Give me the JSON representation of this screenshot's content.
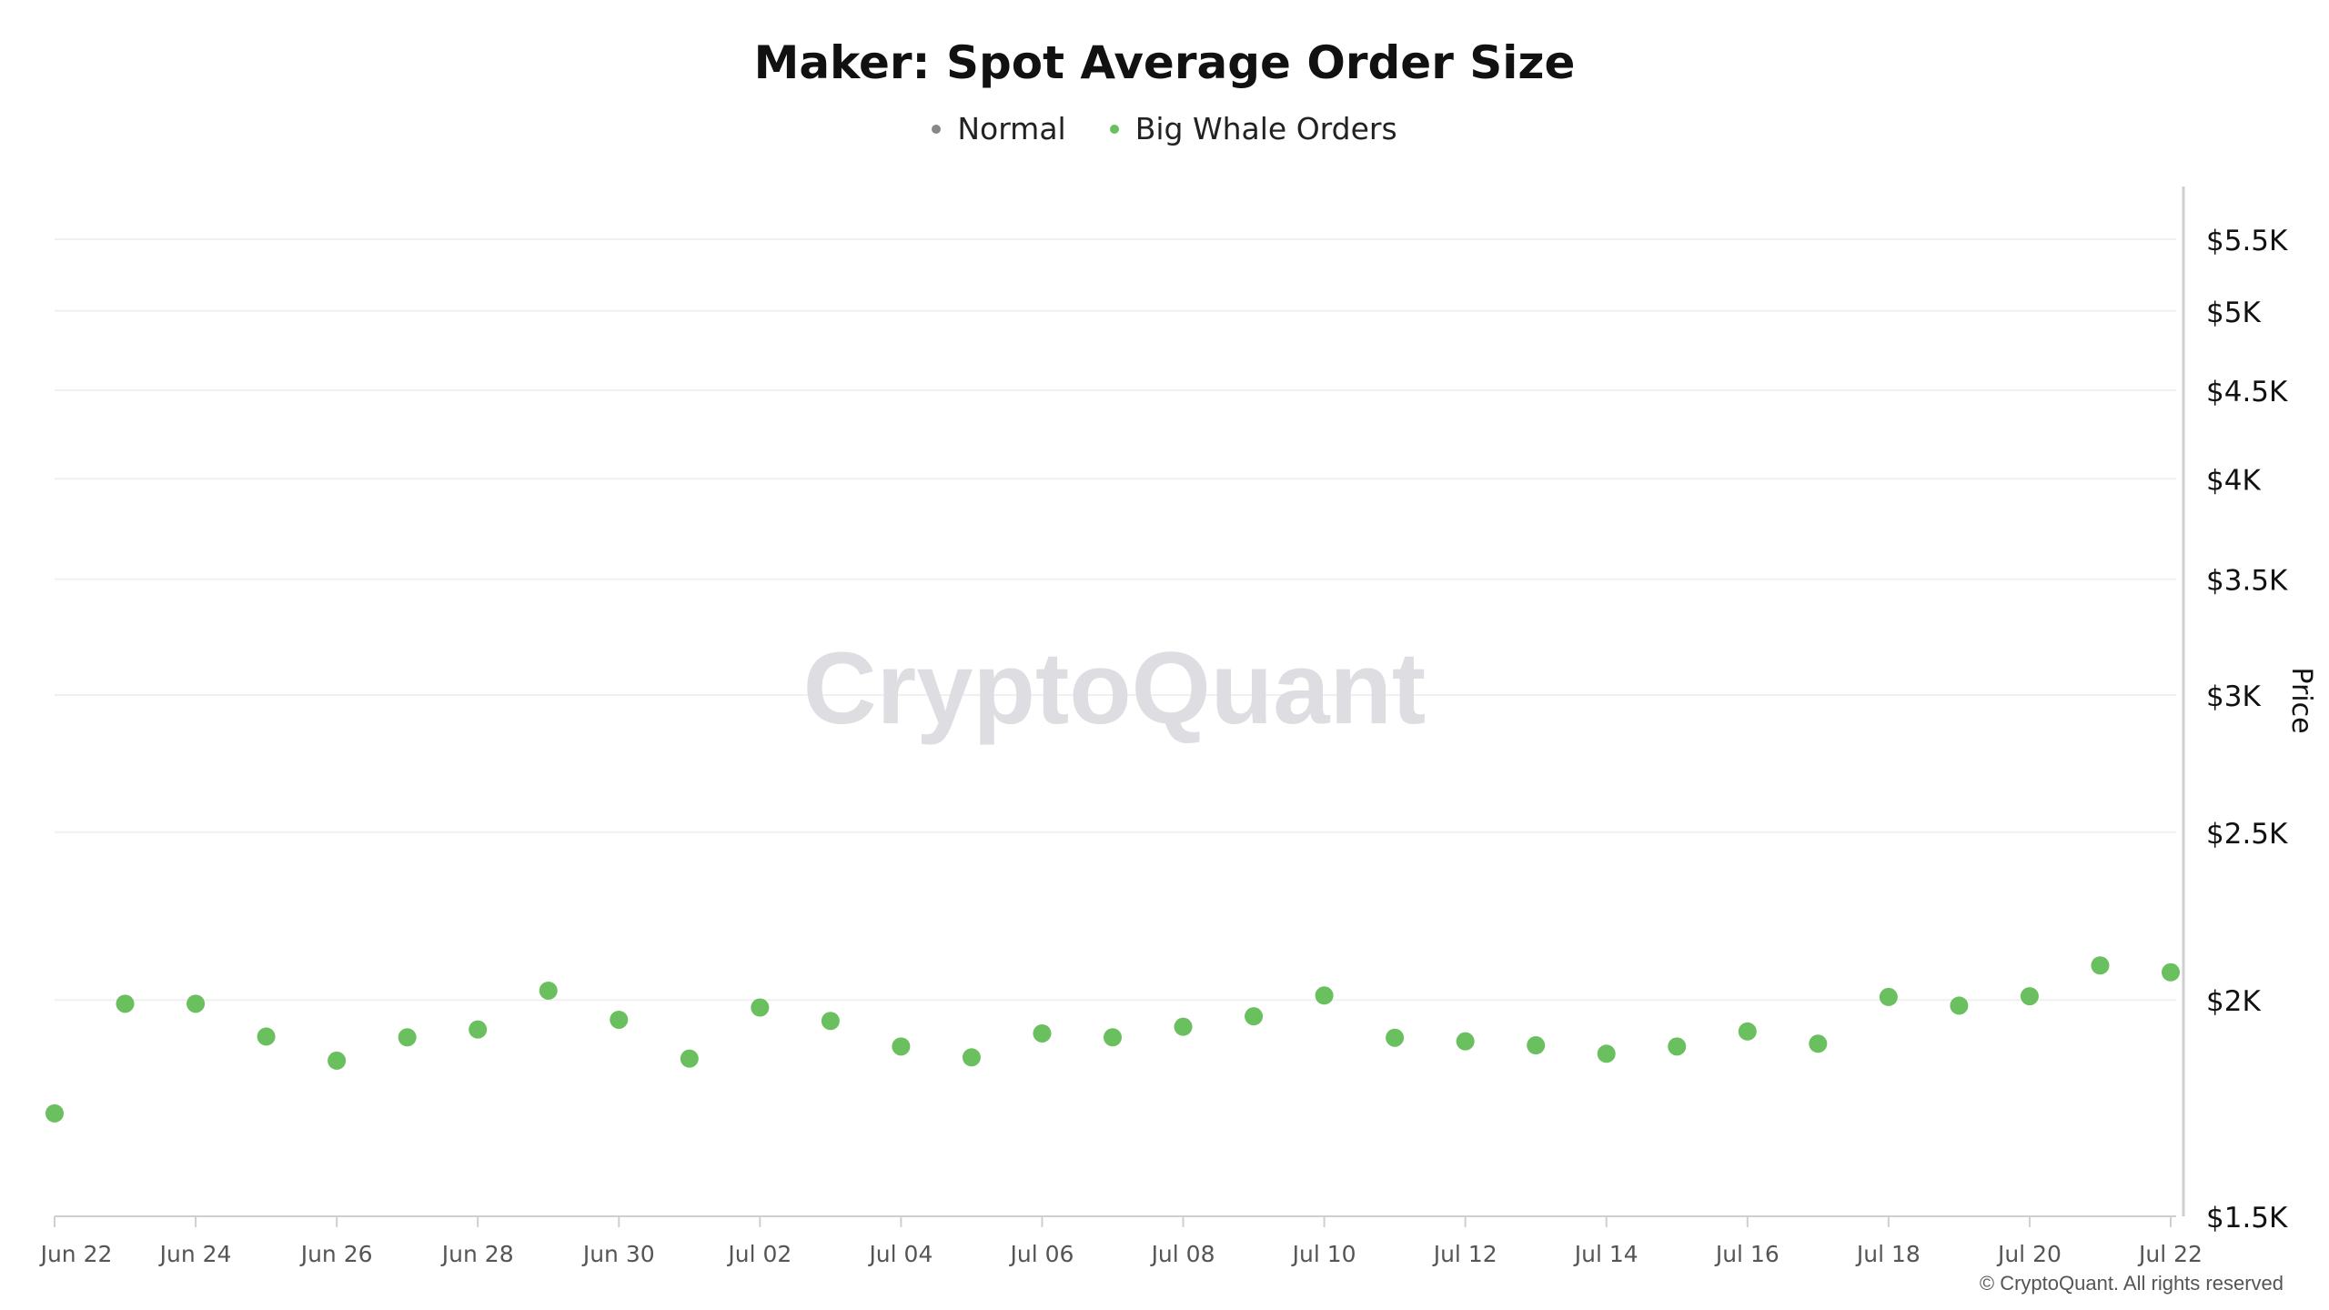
{
  "chart_data": {
    "type": "scatter",
    "title": "Maker: Spot Average Order Size",
    "ylabel": "Price",
    "xlabel": "",
    "y_scale": "log",
    "ylim": [
      1500,
      5900
    ],
    "y_ticks": [
      {
        "value": 1500,
        "label": "$1.5K"
      },
      {
        "value": 2000,
        "label": "$2K"
      },
      {
        "value": 2500,
        "label": "$2.5K"
      },
      {
        "value": 3000,
        "label": "$3K"
      },
      {
        "value": 3500,
        "label": "$3.5K"
      },
      {
        "value": 4000,
        "label": "$4K"
      },
      {
        "value": 4500,
        "label": "$4.5K"
      },
      {
        "value": 5000,
        "label": "$5K"
      },
      {
        "value": 5500,
        "label": "$5.5K"
      }
    ],
    "x_ticks": [
      "Jun 22",
      "Jun 24",
      "Jun 26",
      "Jun 28",
      "Jun 30",
      "Jul 02",
      "Jul 04",
      "Jul 06",
      "Jul 08",
      "Jul 10",
      "Jul 12",
      "Jul 14",
      "Jul 16",
      "Jul 18",
      "Jul 20",
      "Jul 22"
    ],
    "legend": {
      "placement": "top-center"
    },
    "grid": true,
    "series": [
      {
        "name": "Normal",
        "color": "#888888",
        "x": [],
        "values": []
      },
      {
        "name": "Big Whale Orders",
        "color": "#6abf5e",
        "x": [
          "Jun 22",
          "Jun 23",
          "Jun 24",
          "Jun 25",
          "Jun 26",
          "Jun 27",
          "Jun 28",
          "Jun 29",
          "Jun 30",
          "Jul 01",
          "Jul 02",
          "Jul 03",
          "Jul 04",
          "Jul 05",
          "Jul 06",
          "Jul 07",
          "Jul 08",
          "Jul 09",
          "Jul 10",
          "Jul 11",
          "Jul 12",
          "Jul 13",
          "Jul 14",
          "Jul 15",
          "Jul 16",
          "Jul 17",
          "Jul 18",
          "Jul 19",
          "Jul 20",
          "Jul 21",
          "Jul 22"
        ],
        "values": [
          1720,
          1990,
          1990,
          1905,
          1845,
          1903,
          1923,
          2025,
          1948,
          1850,
          1980,
          1945,
          1880,
          1853,
          1913,
          1903,
          1930,
          1957,
          2012,
          1902,
          1893,
          1883,
          1862,
          1880,
          1918,
          1887,
          2008,
          1985,
          2010,
          2094,
          2075
        ]
      }
    ]
  },
  "watermark": "CryptoQuant",
  "copyright": "© CryptoQuant. All rights reserved"
}
